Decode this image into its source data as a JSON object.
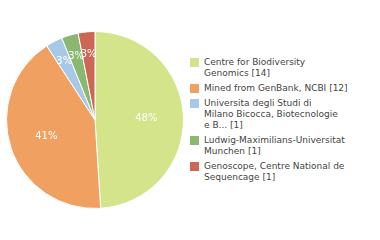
{
  "chart_data": {
    "type": "pie",
    "categories": [
      "Centre for Biodiversity\nGenomics [14]",
      "Mined from GenBank, NCBI [12]",
      "Universita degli Studi di\nMilano Bicocca, Biotecnologie\ne B... [1]",
      "Ludwig-Maximilians-Universitat\nMunchen [1]",
      "Genoscope, Centre National de\nSequencage [1]"
    ],
    "values": [
      48,
      41,
      3,
      3,
      3
    ],
    "value_labels": [
      "48%",
      "41%",
      "3%",
      "3%",
      "3%"
    ],
    "colors": [
      "#d4e48a",
      "#f0a060",
      "#a8c8e8",
      "#8ab870",
      "#cc6655"
    ],
    "data_labels": true,
    "legend": "right"
  }
}
